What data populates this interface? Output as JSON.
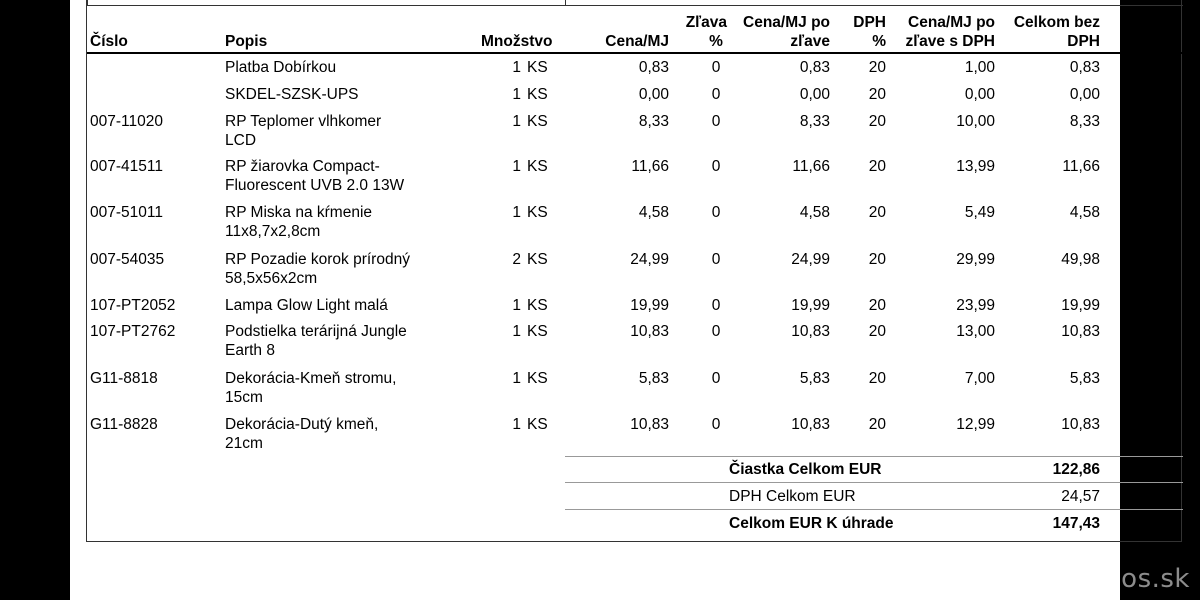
{
  "headers": {
    "cislo": "Číslo",
    "popis": "Popis",
    "mnozstvo": "Množstvo",
    "cena_mj": "Cena/MJ",
    "zlava_line1": "Zľava",
    "zlava_line2": "%",
    "cena_po_line1": "Cena/MJ po",
    "cena_po_line2": "zľave",
    "dph_line1": "DPH",
    "dph_line2": "%",
    "cena_dph_line1": "Cena/MJ po",
    "cena_dph_line2": "zľave s DPH",
    "celkom_line1": "Celkom bez",
    "celkom_line2": "DPH"
  },
  "rows": [
    {
      "cislo": "",
      "popis1": "Platba Dobírkou",
      "popis2": "",
      "qty": "1",
      "unit": "KS",
      "cena": "0,83",
      "zlava": "0",
      "cena_po": "0,83",
      "dph": "20",
      "cena_dph": "1,00",
      "celkom": "0,83"
    },
    {
      "cislo": "",
      "popis1": "SKDEL-SZSK-UPS",
      "popis2": "",
      "qty": "1",
      "unit": "KS",
      "cena": "0,00",
      "zlava": "0",
      "cena_po": "0,00",
      "dph": "20",
      "cena_dph": "0,00",
      "celkom": "0,00"
    },
    {
      "cislo": "007-11020",
      "popis1": "RP Teplomer vlhkomer",
      "popis2": "LCD",
      "qty": "1",
      "unit": "KS",
      "cena": "8,33",
      "zlava": "0",
      "cena_po": "8,33",
      "dph": "20",
      "cena_dph": "10,00",
      "celkom": "8,33"
    },
    {
      "cislo": "007-41511",
      "popis1": "RP žiarovka Compact-",
      "popis2": "Fluorescent  UVB 2.0 13W",
      "qty": "1",
      "unit": "KS",
      "cena": "11,66",
      "zlava": "0",
      "cena_po": "11,66",
      "dph": "20",
      "cena_dph": "13,99",
      "celkom": "11,66"
    },
    {
      "cislo": "007-51011",
      "popis1": "RP Miska na kŕmenie",
      "popis2": "11x8,7x2,8cm",
      "qty": "1",
      "unit": "KS",
      "cena": "4,58",
      "zlava": "0",
      "cena_po": "4,58",
      "dph": "20",
      "cena_dph": "5,49",
      "celkom": "4,58"
    },
    {
      "cislo": "007-54035",
      "popis1": "RP Pozadie korok prírodný",
      "popis2": "58,5x56x2cm",
      "qty": "2",
      "unit": "KS",
      "cena": "24,99",
      "zlava": "0",
      "cena_po": "24,99",
      "dph": "20",
      "cena_dph": "29,99",
      "celkom": "49,98"
    },
    {
      "cislo": "107-PT2052",
      "popis1": "Lampa Glow Light malá",
      "popis2": "",
      "qty": "1",
      "unit": "KS",
      "cena": "19,99",
      "zlava": "0",
      "cena_po": "19,99",
      "dph": "20",
      "cena_dph": "23,99",
      "celkom": "19,99"
    },
    {
      "cislo": "107-PT2762",
      "popis1": "Podstielka terárijná Jungle",
      "popis2": "Earth 8",
      "qty": "1",
      "unit": "KS",
      "cena": "10,83",
      "zlava": "0",
      "cena_po": "10,83",
      "dph": "20",
      "cena_dph": "13,00",
      "celkom": "10,83"
    },
    {
      "cislo": "G11-8818",
      "popis1": "Dekorácia-Kmeň stromu,",
      "popis2": "15cm",
      "qty": "1",
      "unit": "KS",
      "cena": "5,83",
      "zlava": "0",
      "cena_po": "5,83",
      "dph": "20",
      "cena_dph": "7,00",
      "celkom": "5,83"
    },
    {
      "cislo": "G11-8828",
      "popis1": "Dekorácia-Dutý kmeň,",
      "popis2": "21cm",
      "qty": "1",
      "unit": "KS",
      "cena": "10,83",
      "zlava": "0",
      "cena_po": "10,83",
      "dph": "20",
      "cena_dph": "12,99",
      "celkom": "10,83"
    }
  ],
  "summary": {
    "ciastka_label": "Čiastka Celkom EUR",
    "ciastka_value": "122,86",
    "dph_label": "DPH Celkom EUR",
    "dph_value": "24,57",
    "celkom_label": "Celkom EUR K úhrade",
    "celkom_value": "147,43"
  },
  "watermark": "@( Bazos.sk"
}
